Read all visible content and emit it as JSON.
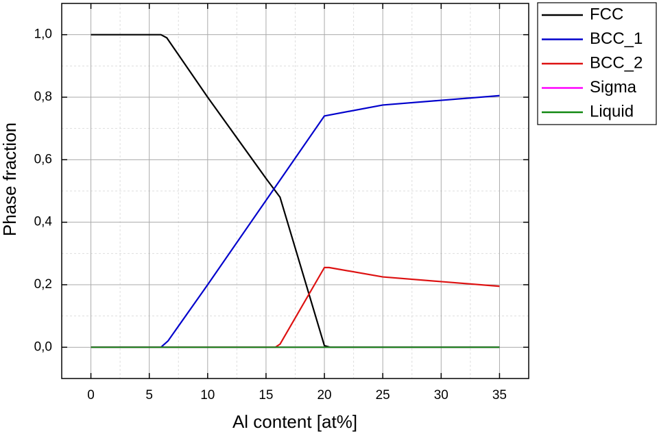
{
  "chart_data": {
    "type": "line",
    "xlabel": "Al content [at%]",
    "ylabel": "Phase fraction",
    "xlim": [
      -2.5,
      37.5
    ],
    "ylim": [
      -0.1,
      1.1
    ],
    "xticks": [
      0,
      5,
      10,
      15,
      20,
      25,
      30,
      35
    ],
    "yticks": [
      {
        "value": 0,
        "label": "0,0"
      },
      {
        "value": 0.2,
        "label": "0,2"
      },
      {
        "value": 0.4,
        "label": "0,4"
      },
      {
        "value": 0.6,
        "label": "0,6"
      },
      {
        "value": 0.8,
        "label": "0,8"
      },
      {
        "value": 1,
        "label": "1,0"
      }
    ],
    "xminorticks": [
      2.5,
      7.5,
      12.5,
      17.5,
      22.5,
      27.5,
      32.5
    ],
    "yminorticks": [
      0.1,
      0.3,
      0.5,
      0.7,
      0.9
    ],
    "grid": true,
    "legend": "outside-right",
    "series": [
      {
        "name": "FCC",
        "color": "#000000",
        "x": [
          0,
          6,
          6.5,
          10,
          15,
          15.8,
          16.2,
          20,
          20.5,
          35
        ],
        "values": [
          1,
          1,
          0.99,
          0.8,
          0.54,
          0.5,
          0.48,
          0.005,
          0,
          0
        ]
      },
      {
        "name": "BCC_1",
        "color": "#0000cc",
        "x": [
          0,
          6,
          6.6,
          10,
          15,
          20,
          25,
          30,
          35
        ],
        "values": [
          0,
          0,
          0.02,
          0.2,
          0.47,
          0.74,
          0.775,
          0.79,
          0.805
        ]
      },
      {
        "name": "BCC_2",
        "color": "#dd1111",
        "x": [
          0,
          15.8,
          16.2,
          20,
          20.4,
          25,
          30,
          35
        ],
        "values": [
          0,
          0,
          0.01,
          0.255,
          0.255,
          0.225,
          0.21,
          0.195
        ]
      },
      {
        "name": "Sigma",
        "color": "#ff00ff",
        "x": [
          0,
          35
        ],
        "values": [
          0,
          0
        ]
      },
      {
        "name": "Liquid",
        "color": "#118811",
        "x": [
          0,
          35
        ],
        "values": [
          0,
          0
        ]
      }
    ]
  }
}
